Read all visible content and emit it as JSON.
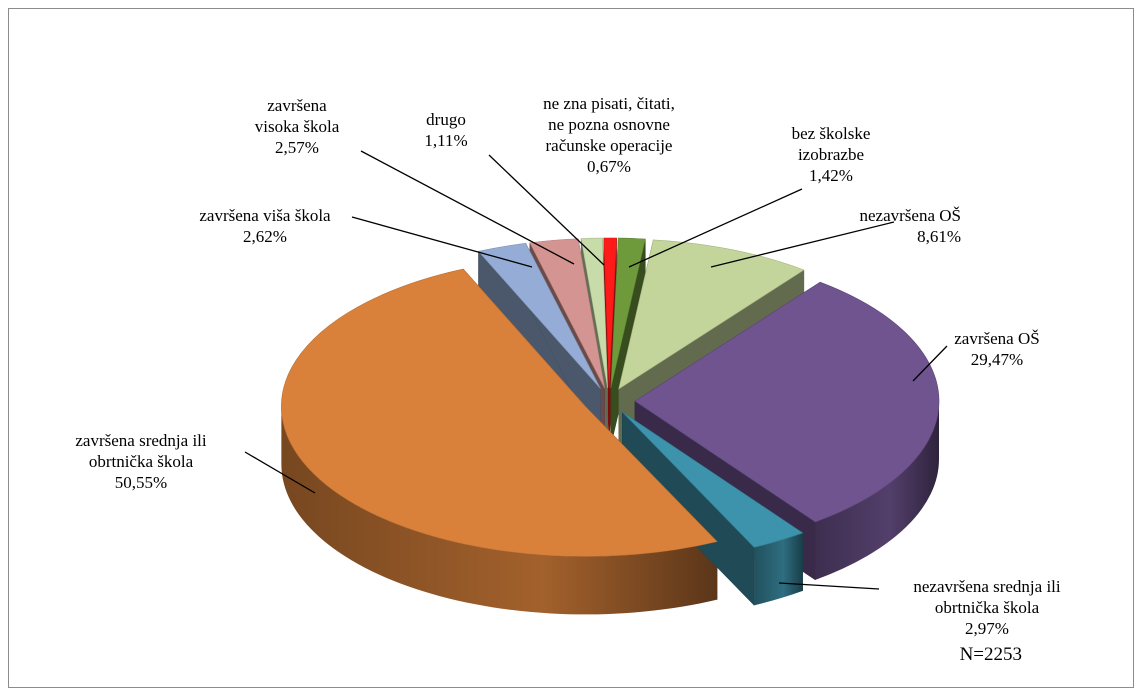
{
  "chart_data": {
    "type": "pie",
    "title": "",
    "slices": [
      {
        "label": [
          "ne zna pisati, čitati,",
          "ne pozna osnovne",
          "računske operacije"
        ],
        "value_label": "0,67%",
        "value": 0.67,
        "color": "#ff1a1a",
        "exploded": true
      },
      {
        "label": [
          "bez školske",
          "izobrazbe"
        ],
        "value_label": "1,42%",
        "value": 1.42,
        "color": "#6f9a3c",
        "exploded": true
      },
      {
        "label": [
          "nezavršena OŠ"
        ],
        "value_label": "8,61%",
        "value": 8.61,
        "color": "#c3d59b",
        "exploded": true
      },
      {
        "label": [
          "završena OŠ"
        ],
        "value_label": "29,47%",
        "value": 29.47,
        "color": "#6f548f",
        "exploded": true
      },
      {
        "label": [
          "nezavršena srednja ili",
          "obrtnička škola"
        ],
        "value_label": "2,97%",
        "value": 2.97,
        "color": "#3d93ab",
        "exploded": true
      },
      {
        "label": [
          "završena srednja ili",
          "obrtnička škola"
        ],
        "value_label": "50,55%",
        "value": 50.55,
        "color": "#d9813b",
        "exploded": true
      },
      {
        "label": [
          "završena viša škola"
        ],
        "value_label": "2,62%",
        "value": 2.62,
        "color": "#95add6",
        "exploded": true
      },
      {
        "label": [
          "završena",
          "visoka škola"
        ],
        "value_label": "2,57%",
        "value": 2.57,
        "color": "#d49592",
        "exploded": true
      },
      {
        "label": [
          "drugo"
        ],
        "value_label": "1,11%",
        "value": 1.11,
        "color": "#c8dcaa",
        "exploded": true
      }
    ],
    "note": "N=2253",
    "legend": "none"
  }
}
